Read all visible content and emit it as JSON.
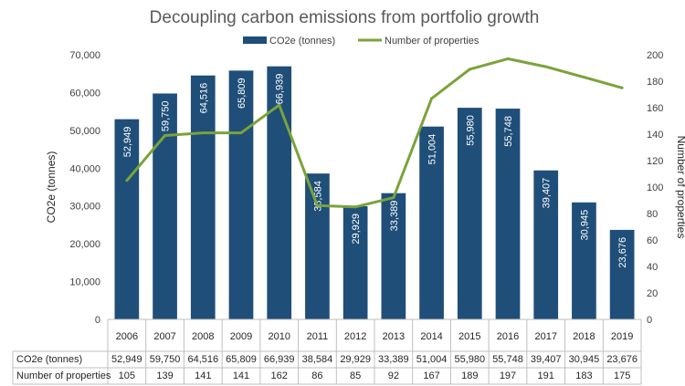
{
  "chart_data": {
    "type": "bar",
    "title": "Decoupling carbon emissions from portfolio growth",
    "categories": [
      "2006",
      "2007",
      "2008",
      "2009",
      "2010",
      "2011",
      "2012",
      "2013",
      "2014",
      "2015",
      "2016",
      "2017",
      "2018",
      "2019"
    ],
    "series": [
      {
        "name": "CO2e (tonnes)",
        "type": "bar",
        "axis": "left",
        "color": "#1f4e79",
        "values": [
          52949,
          59750,
          64516,
          65809,
          66939,
          38584,
          29929,
          33389,
          51004,
          55980,
          55748,
          39407,
          30945,
          23676
        ],
        "labels": [
          "52,949",
          "59,750",
          "64,516",
          "65,809",
          "66,939",
          "38,584",
          "29,929",
          "33,389",
          "51,004",
          "55,980",
          "55,748",
          "39,407",
          "30,945",
          "23,676"
        ]
      },
      {
        "name": "Number of properties",
        "type": "line",
        "axis": "right",
        "color": "#7aa33a",
        "values": [
          105,
          139,
          141,
          141,
          162,
          86,
          85,
          92,
          167,
          189,
          197,
          191,
          183,
          175
        ]
      }
    ],
    "ylabel": "CO2e (tonnes)",
    "y2label": "Number of properties",
    "ylim": [
      0,
      70000
    ],
    "y2lim": [
      0,
      200
    ],
    "yticks": [
      "0",
      "10,000",
      "20,000",
      "30,000",
      "40,000",
      "50,000",
      "60,000",
      "70,000"
    ],
    "y2ticks": [
      "0",
      "20",
      "40",
      "60",
      "80",
      "100",
      "120",
      "140",
      "160",
      "180",
      "200"
    ],
    "legend_position": "top",
    "grid": false,
    "data_table": {
      "rows": [
        {
          "header": "CO2e (tonnes)",
          "cells": [
            "52,949",
            "59,750",
            "64,516",
            "65,809",
            "66,939",
            "38,584",
            "29,929",
            "33,389",
            "51,004",
            "55,980",
            "55,748",
            "39,407",
            "30,945",
            "23,676"
          ]
        },
        {
          "header": "Number of properties",
          "cells": [
            "105",
            "139",
            "141",
            "141",
            "162",
            "86",
            "85",
            "92",
            "167",
            "189",
            "197",
            "191",
            "183",
            "175"
          ]
        }
      ]
    }
  }
}
